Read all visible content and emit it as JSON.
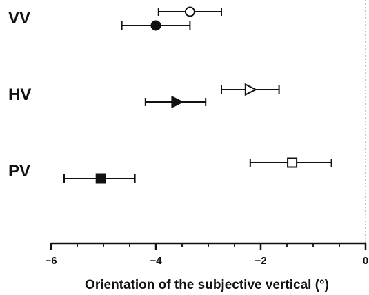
{
  "chart_data": {
    "type": "scatter",
    "title": "",
    "xlabel": "Orientation of the subjective vertical (°)",
    "ylabel": "",
    "xlim": [
      -6,
      0
    ],
    "xticks": [
      -6,
      -4,
      -2,
      0
    ],
    "xtick_labels": [
      "−6",
      "−4",
      "−2",
      "0"
    ],
    "reference_line_x": 0,
    "grid": false,
    "colors": {
      "ink": "#111111",
      "reference_line": "#999999",
      "open_fill": "#ffffff",
      "filled_fill": "#111111"
    },
    "groups": [
      {
        "label": "VV",
        "points": [
          {
            "marker": "circle-open",
            "x": -3.35,
            "err_low": -3.95,
            "err_high": -2.75
          },
          {
            "marker": "circle-filled",
            "x": -4.0,
            "err_low": -4.65,
            "err_high": -3.35
          }
        ]
      },
      {
        "label": "HV",
        "points": [
          {
            "marker": "triangle-right-open",
            "x": -2.2,
            "err_low": -2.75,
            "err_high": -1.65
          },
          {
            "marker": "triangle-right-filled",
            "x": -3.6,
            "err_low": -4.2,
            "err_high": -3.05
          }
        ]
      },
      {
        "label": "PV",
        "points": [
          {
            "marker": "square-open",
            "x": -1.4,
            "err_low": -2.2,
            "err_high": -0.65
          },
          {
            "marker": "square-filled",
            "x": -5.05,
            "err_low": -5.75,
            "err_high": -4.4
          }
        ]
      }
    ]
  }
}
